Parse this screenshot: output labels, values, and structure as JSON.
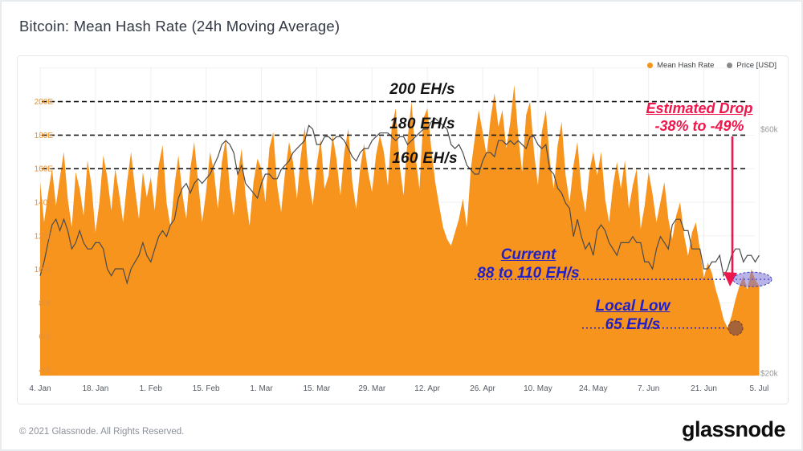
{
  "page": {
    "title": "Bitcoin: Mean Hash Rate (24h Moving Average)"
  },
  "legend": [
    {
      "label": "Mean Hash Rate",
      "color": "#f7941e"
    },
    {
      "label": "Price [USD]",
      "color": "#8a8a8a"
    }
  ],
  "annotations": {
    "level_200": "200 EH/s",
    "level_180": "180 EH/s",
    "level_160": "160 EH/s",
    "estimated_drop_title": "Estimated Drop",
    "estimated_drop_value": "-38% to -49%",
    "current_title": "Current",
    "current_value": "88 to 110 EH/s",
    "local_low_title": "Local Low",
    "local_low_value": "65 EH/s",
    "colors": {
      "red": "#ed174c",
      "blue": "#2320c6",
      "black": "#141414"
    }
  },
  "footer": {
    "copyright": "© 2021 Glassnode. All Rights Reserved.",
    "brand": "glassnode"
  },
  "chart_data": {
    "type": "area",
    "title": "Bitcoin: Mean Hash Rate (24h Moving Average)",
    "x_tick_labels": [
      "4. Jan",
      "18. Jan",
      "1. Feb",
      "15. Feb",
      "1. Mar",
      "15. Mar",
      "29. Mar",
      "12. Apr",
      "26. Apr",
      "10. May",
      "24. May",
      "7. Jun",
      "21. Jun",
      "5. Jul"
    ],
    "x_tick_days": [
      0,
      14,
      28,
      42,
      56,
      70,
      84,
      98,
      112,
      126,
      140,
      154,
      168,
      182
    ],
    "y_left": {
      "unit": "EH/s",
      "tick_labels": [
        "200E",
        "180E",
        "160E",
        "140E",
        "120E",
        "100E",
        "80E",
        "60E",
        "40E"
      ],
      "tick_values": [
        200,
        180,
        160,
        140,
        120,
        100,
        80,
        60,
        40
      ],
      "range": [
        40,
        220
      ],
      "color": "#ea9030"
    },
    "y_right": {
      "unit": "USD",
      "tick_labels": [
        "$60k",
        "$20k"
      ],
      "tick_values": [
        60,
        20
      ],
      "scale": "log",
      "color": "#9a9a9a"
    },
    "reference_lines_ehs": [
      200,
      180,
      160
    ],
    "current_level_ehs": 94,
    "local_low_level_ehs": 65,
    "legend_position": "top-right",
    "grid": true,
    "series": [
      {
        "name": "Mean Hash Rate",
        "unit": "EH/s",
        "type": "area",
        "color": "#f7941e",
        "values": [
          152,
          128,
          145,
          160,
          138,
          155,
          170,
          142,
          125,
          158,
          148,
          132,
          165,
          150,
          122,
          140,
          168,
          155,
          135,
          160,
          145,
          128,
          152,
          170,
          148,
          130,
          158,
          143,
          155,
          135,
          162,
          174,
          140,
          125,
          150,
          168,
          145,
          130,
          160,
          176,
          152,
          128,
          146,
          170,
          158,
          136,
          164,
          178,
          148,
          132,
          156,
          172,
          144,
          126,
          152,
          166,
          160,
          140,
          172,
          182,
          150,
          134,
          158,
          176,
          164,
          142,
          168,
          185,
          154,
          138,
          162,
          178,
          148,
          156,
          180,
          166,
          144,
          170,
          184,
          152,
          136,
          160,
          175,
          158,
          146,
          168,
          180,
          170,
          150,
          185,
          196,
          162,
          144,
          178,
          200,
          168,
          148,
          190,
          196,
          172,
          152,
          138,
          125,
          118,
          114,
          122,
          130,
          142,
          125,
          160,
          178,
          195,
          182,
          168,
          190,
          205,
          185,
          195,
          172,
          188,
          210,
          180,
          158,
          192,
          200,
          170,
          150,
          182,
          195,
          165,
          148,
          174,
          188,
          156,
          140,
          162,
          176,
          148,
          134,
          158,
          170,
          156,
          170,
          142,
          128,
          150,
          164,
          148,
          165,
          136,
          150,
          160,
          124,
          138,
          158,
          145,
          128,
          140,
          152,
          130,
          118,
          132,
          140,
          120,
          108,
          122,
          128,
          112,
          95,
          104,
          98,
          88,
          80,
          70,
          65,
          72,
          82,
          90,
          96,
          88,
          100,
          94,
          90
        ]
      },
      {
        "name": "Price [USD]",
        "unit": "$k",
        "type": "line",
        "color": "#4a4a4a",
        "values": [
          31,
          33,
          36,
          39,
          40,
          38,
          40,
          38,
          35,
          36,
          38,
          36,
          35,
          35,
          36,
          36,
          35,
          32,
          31,
          32,
          32,
          32,
          30,
          32,
          33,
          34,
          36,
          34,
          33,
          35,
          37,
          38,
          37,
          39,
          40,
          44,
          46,
          47,
          45,
          47,
          48,
          47,
          48,
          49,
          51,
          53,
          56,
          57,
          56,
          54,
          49,
          51,
          47,
          46,
          45,
          44,
          47,
          49,
          49,
          48,
          48,
          50,
          51,
          52,
          54,
          55,
          56,
          57,
          61,
          60,
          56,
          56,
          58,
          58,
          57,
          58,
          58,
          57,
          55,
          53,
          52,
          54,
          55,
          55,
          57,
          58,
          59,
          59,
          59,
          58,
          57,
          58,
          58,
          56,
          57,
          58,
          59,
          60,
          60,
          62,
          63,
          62,
          61,
          60,
          56,
          55,
          56,
          54,
          51,
          50,
          49,
          49,
          52,
          54,
          54,
          53,
          57,
          57,
          56,
          57,
          56,
          57,
          56,
          55,
          58,
          58,
          56,
          55,
          56,
          50,
          49,
          46,
          45,
          43,
          42,
          37,
          40,
          37,
          35,
          36,
          34,
          38,
          39,
          38,
          36,
          35,
          34,
          36,
          36,
          36,
          37,
          36,
          36,
          33,
          33,
          32,
          35,
          37,
          36,
          35,
          39,
          40,
          40,
          38,
          38,
          35,
          35,
          35,
          32,
          32,
          33,
          33,
          34,
          31,
          32,
          34,
          35,
          35,
          33,
          34,
          34,
          33,
          34
        ]
      }
    ]
  }
}
